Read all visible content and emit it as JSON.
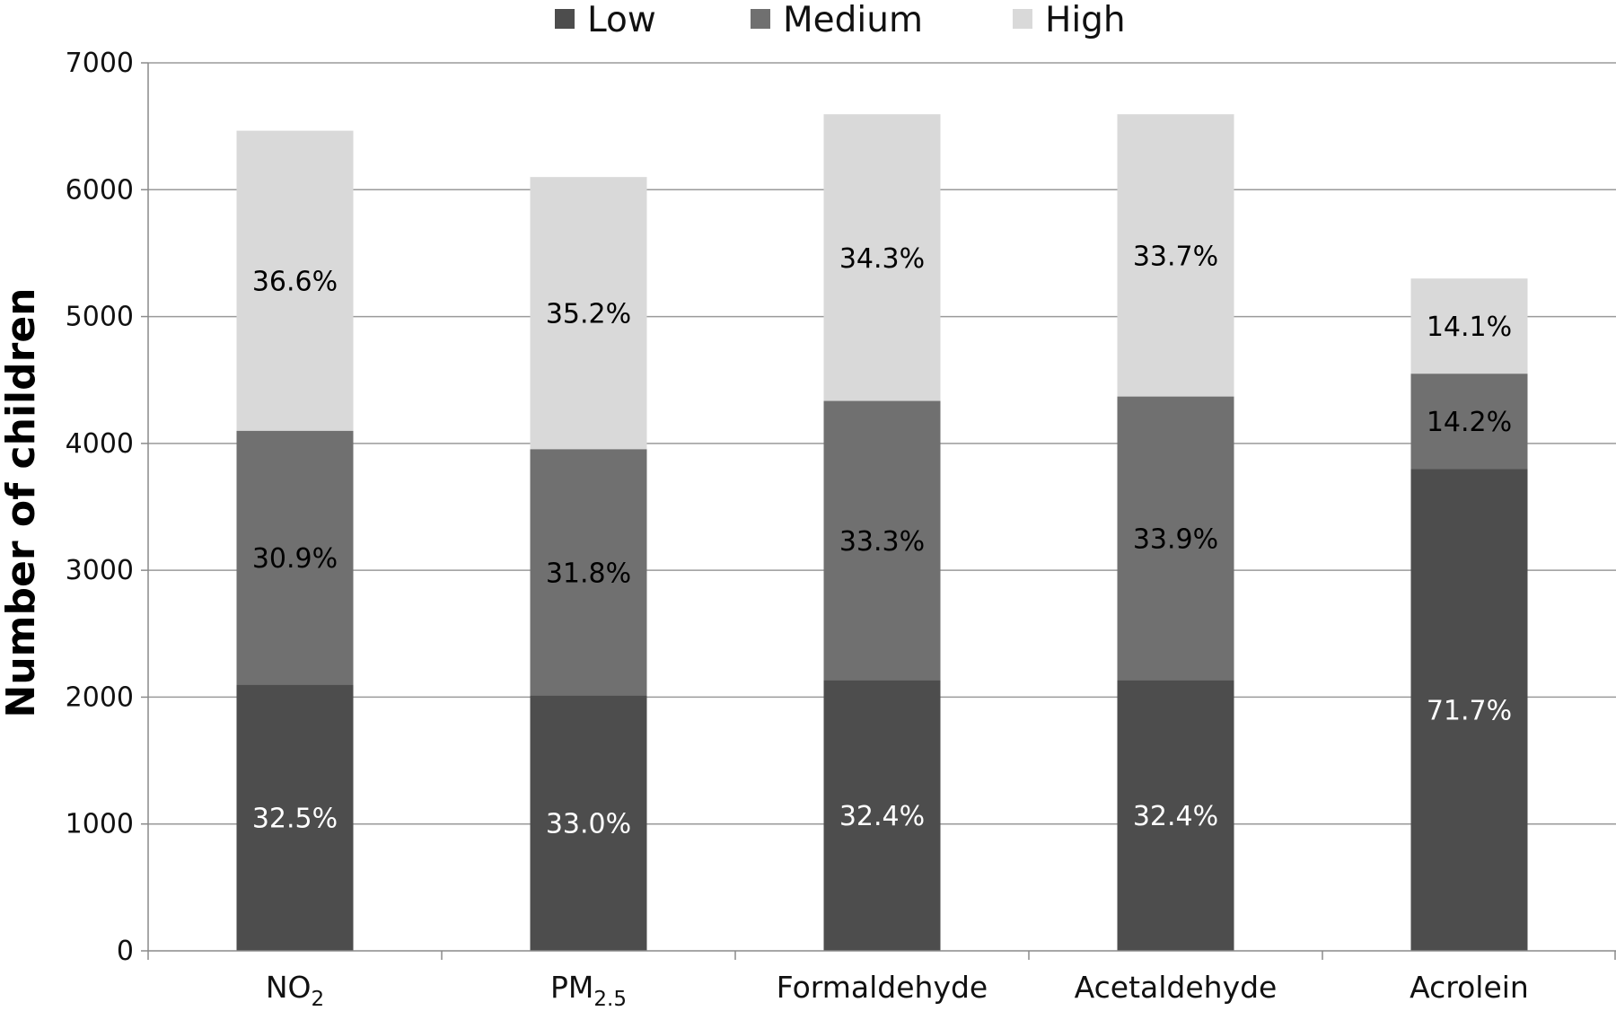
{
  "chart_data": {
    "type": "bar",
    "stacked": true,
    "title": "",
    "xlabel": "",
    "ylabel": "Number of children",
    "ylim": [
      0,
      7000
    ],
    "yticks": [
      0,
      1000,
      2000,
      3000,
      4000,
      5000,
      6000,
      7000
    ],
    "grid": true,
    "legend_position": "top",
    "categories": [
      {
        "main": "NO",
        "sub": "2"
      },
      {
        "main": "PM",
        "sub": "2.5"
      },
      {
        "main": "Formaldehyde",
        "sub": ""
      },
      {
        "main": "Acetaldehyde",
        "sub": ""
      },
      {
        "main": "Acrolein",
        "sub": ""
      }
    ],
    "series": [
      {
        "name": "Low",
        "color": "#4d4d4d",
        "label_color": "#ffffff",
        "values": [
          2100,
          2015,
          2135,
          2135,
          3800
        ],
        "labels": [
          "32.5%",
          "33.0%",
          "32.4%",
          "32.4%",
          "71.7%"
        ]
      },
      {
        "name": "Medium",
        "color": "#707070",
        "label_color": "#000000",
        "values": [
          2000,
          1940,
          2200,
          2235,
          750
        ],
        "labels": [
          "30.9%",
          "31.8%",
          "33.3%",
          "33.9%",
          "14.2%"
        ]
      },
      {
        "name": "High",
        "color": "#d9d9d9",
        "label_color": "#000000",
        "values": [
          2365,
          2145,
          2260,
          2225,
          750
        ],
        "labels": [
          "36.6%",
          "35.2%",
          "34.3%",
          "33.7%",
          "14.1%"
        ]
      }
    ]
  }
}
